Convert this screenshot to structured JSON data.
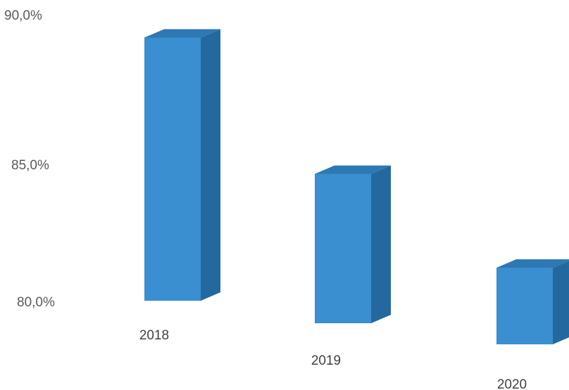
{
  "chart_data": {
    "type": "bar",
    "style": "3d-column",
    "categories": [
      "2018",
      "2019",
      "2020"
    ],
    "series": [
      {
        "values": [
          0.882,
          0.85,
          0.823
        ]
      }
    ],
    "y_axis": {
      "ticks": [
        "90,0%",
        "85,0%",
        "80,0%"
      ],
      "tick_values": [
        0.9,
        0.85,
        0.8
      ],
      "ylim": [
        0.8,
        0.9
      ]
    },
    "colors": {
      "front": "#3a8fd0",
      "top": "#2e78b4",
      "side": "#23699f"
    },
    "grid": false,
    "legend": false
  }
}
